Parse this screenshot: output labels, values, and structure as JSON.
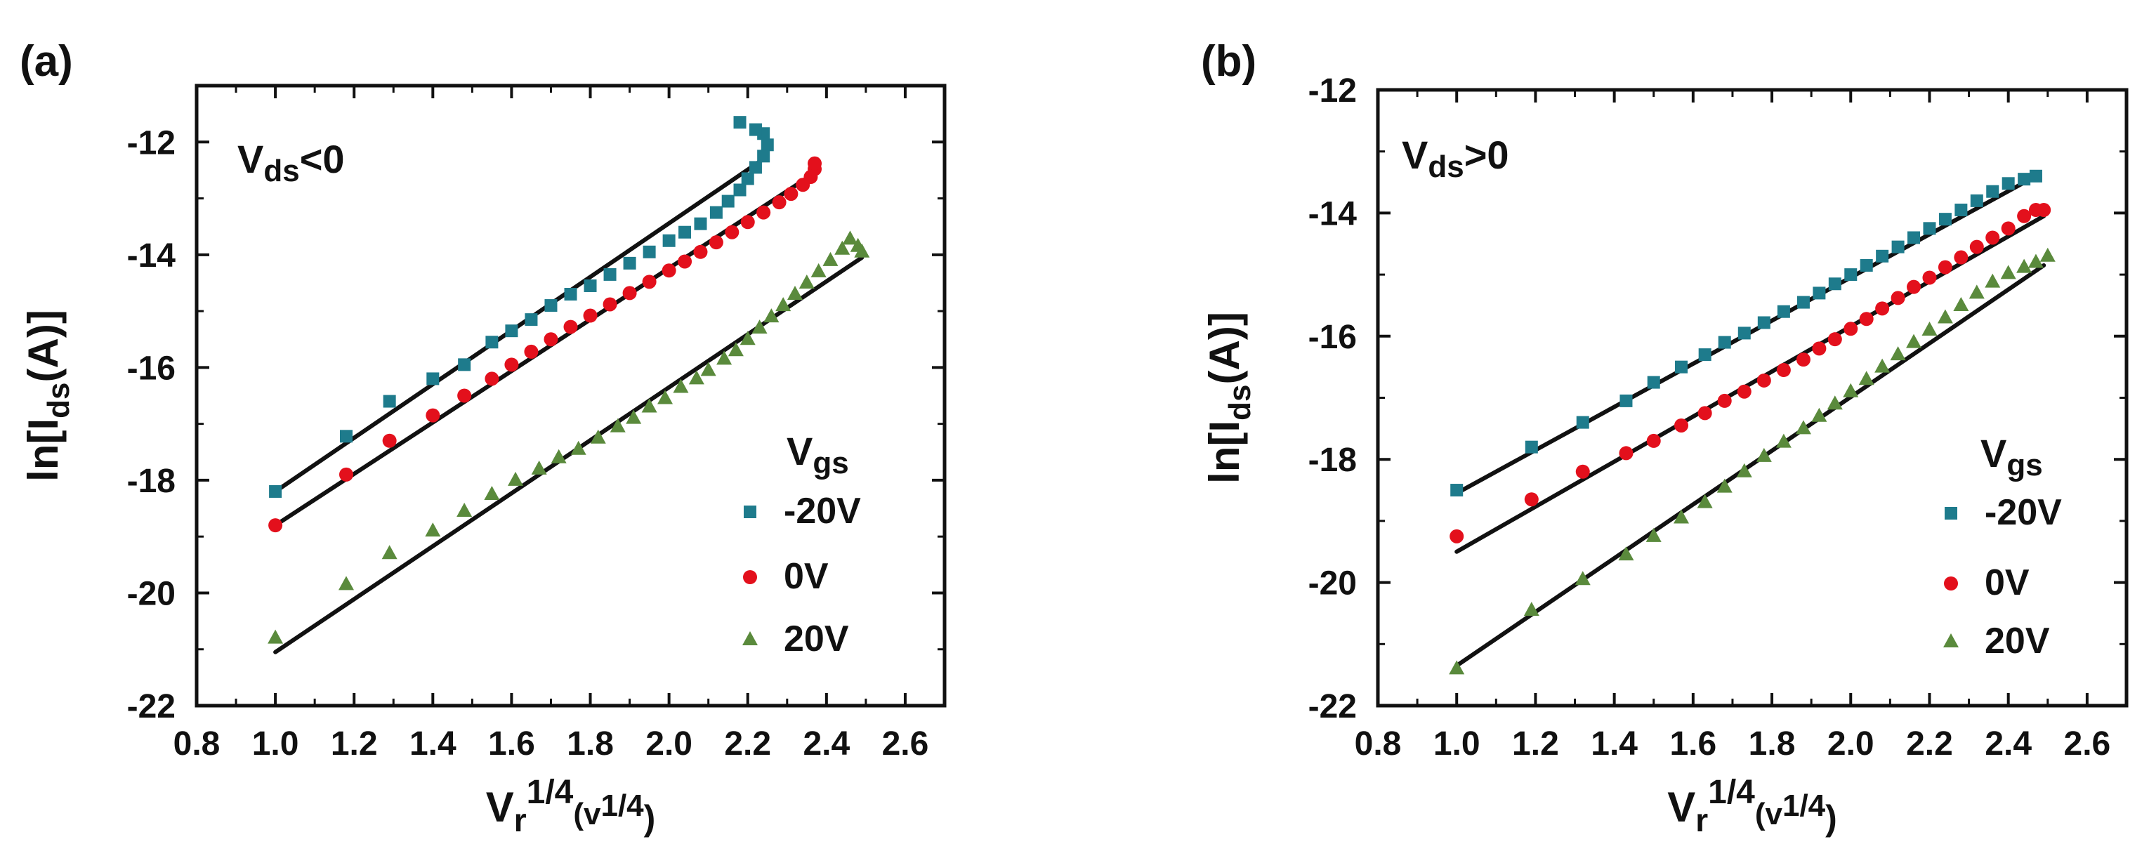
{
  "chart_data": [
    {
      "type": "scatter",
      "panel_label": "(a)",
      "annotation": {
        "main": "V",
        "sub": "ds",
        "rest": "<0"
      },
      "xlim": [
        0.8,
        2.7
      ],
      "ylim": [
        -22,
        -11
      ],
      "xticks": [
        0.8,
        1.0,
        1.2,
        1.4,
        1.6,
        1.8,
        2.0,
        2.2,
        2.4,
        2.6
      ],
      "xtick_labels": [
        "0.8",
        "1.0",
        "1.2",
        "1.4",
        "1.6",
        "1.8",
        "2.0",
        "2.2",
        "2.4",
        "2.6"
      ],
      "yticks": [
        -22,
        -20,
        -18,
        -16,
        -14,
        -12
      ],
      "ytick_labels": [
        "-22",
        "-20",
        "-18",
        "-16",
        "-14",
        "-12"
      ],
      "legend_title": {
        "main": "V",
        "sub": "gs"
      },
      "legend_position": "bottom-right",
      "series": [
        {
          "name": "-20V",
          "marker": "square",
          "color": "#1e7b8c",
          "points": [
            [
              1.0,
              -18.2
            ],
            [
              1.18,
              -17.22
            ],
            [
              1.29,
              -16.6
            ],
            [
              1.4,
              -16.2
            ],
            [
              1.48,
              -15.95
            ],
            [
              1.55,
              -15.55
            ],
            [
              1.6,
              -15.35
            ],
            [
              1.65,
              -15.15
            ],
            [
              1.7,
              -14.9
            ],
            [
              1.75,
              -14.7
            ],
            [
              1.8,
              -14.55
            ],
            [
              1.85,
              -14.35
            ],
            [
              1.9,
              -14.15
            ],
            [
              1.95,
              -13.95
            ],
            [
              2.0,
              -13.75
            ],
            [
              2.04,
              -13.6
            ],
            [
              2.08,
              -13.45
            ],
            [
              2.12,
              -13.25
            ],
            [
              2.15,
              -13.05
            ],
            [
              2.18,
              -12.85
            ],
            [
              2.2,
              -12.65
            ],
            [
              2.22,
              -12.45
            ],
            [
              2.24,
              -12.25
            ],
            [
              2.25,
              -12.05
            ],
            [
              2.24,
              -11.85
            ],
            [
              2.22,
              -11.78
            ],
            [
              2.18,
              -11.65
            ]
          ],
          "fit": [
            [
              1.0,
              -18.2
            ],
            [
              2.24,
              -12.3
            ]
          ]
        },
        {
          "name": "0V",
          "marker": "circle",
          "color": "#e3101c",
          "points": [
            [
              1.0,
              -18.8
            ],
            [
              1.18,
              -17.9
            ],
            [
              1.29,
              -17.3
            ],
            [
              1.4,
              -16.85
            ],
            [
              1.48,
              -16.5
            ],
            [
              1.55,
              -16.2
            ],
            [
              1.6,
              -15.95
            ],
            [
              1.65,
              -15.72
            ],
            [
              1.7,
              -15.5
            ],
            [
              1.75,
              -15.28
            ],
            [
              1.8,
              -15.08
            ],
            [
              1.85,
              -14.88
            ],
            [
              1.9,
              -14.68
            ],
            [
              1.95,
              -14.48
            ],
            [
              2.0,
              -14.28
            ],
            [
              2.04,
              -14.12
            ],
            [
              2.08,
              -13.95
            ],
            [
              2.12,
              -13.78
            ],
            [
              2.16,
              -13.6
            ],
            [
              2.2,
              -13.42
            ],
            [
              2.24,
              -13.25
            ],
            [
              2.28,
              -13.07
            ],
            [
              2.31,
              -12.92
            ],
            [
              2.34,
              -12.76
            ],
            [
              2.36,
              -12.62
            ],
            [
              2.37,
              -12.48
            ],
            [
              2.37,
              -12.38
            ]
          ],
          "fit": [
            [
              1.0,
              -18.8
            ],
            [
              2.37,
              -12.55
            ]
          ]
        },
        {
          "name": "20V",
          "marker": "triangle",
          "color": "#5a8a3c",
          "points": [
            [
              1.0,
              -20.8
            ],
            [
              1.18,
              -19.85
            ],
            [
              1.29,
              -19.3
            ],
            [
              1.4,
              -18.9
            ],
            [
              1.48,
              -18.55
            ],
            [
              1.55,
              -18.25
            ],
            [
              1.61,
              -18.0
            ],
            [
              1.67,
              -17.8
            ],
            [
              1.72,
              -17.6
            ],
            [
              1.77,
              -17.45
            ],
            [
              1.82,
              -17.25
            ],
            [
              1.87,
              -17.05
            ],
            [
              1.91,
              -16.9
            ],
            [
              1.95,
              -16.7
            ],
            [
              1.99,
              -16.55
            ],
            [
              2.03,
              -16.35
            ],
            [
              2.07,
              -16.2
            ],
            [
              2.1,
              -16.05
            ],
            [
              2.14,
              -15.85
            ],
            [
              2.17,
              -15.7
            ],
            [
              2.2,
              -15.5
            ],
            [
              2.23,
              -15.3
            ],
            [
              2.26,
              -15.1
            ],
            [
              2.29,
              -14.9
            ],
            [
              2.32,
              -14.7
            ],
            [
              2.35,
              -14.5
            ],
            [
              2.38,
              -14.3
            ],
            [
              2.41,
              -14.1
            ],
            [
              2.44,
              -13.9
            ],
            [
              2.46,
              -13.72
            ],
            [
              2.48,
              -13.85
            ],
            [
              2.49,
              -13.95
            ]
          ],
          "fit": [
            [
              1.0,
              -21.05
            ],
            [
              2.49,
              -14.05
            ]
          ]
        }
      ],
      "xlabel": {
        "main": "V",
        "sub": "r",
        "sup": "1/4",
        "rest": "(v",
        "rest_sup": "1/4",
        "end": ")"
      },
      "ylabel": {
        "pre": "ln[I",
        "sub": "ds",
        "post": "(A)]"
      }
    },
    {
      "type": "scatter",
      "panel_label": "(b)",
      "annotation": {
        "main": "V",
        "sub": "ds",
        "rest": ">0"
      },
      "xlim": [
        0.8,
        2.7
      ],
      "ylim": [
        -22,
        -12
      ],
      "xticks": [
        0.8,
        1.0,
        1.2,
        1.4,
        1.6,
        1.8,
        2.0,
        2.2,
        2.4,
        2.6
      ],
      "xtick_labels": [
        "0.8",
        "1.0",
        "1.2",
        "1.4",
        "1.6",
        "1.8",
        "2.0",
        "2.2",
        "2.4",
        "2.6"
      ],
      "yticks": [
        -22,
        -20,
        -18,
        -16,
        -14,
        -12
      ],
      "ytick_labels": [
        "-22",
        "-20",
        "-18",
        "-16",
        "-14",
        "-12"
      ],
      "legend_title": {
        "main": "V",
        "sub": "gs"
      },
      "legend_position": "bottom-right",
      "series": [
        {
          "name": "-20V",
          "marker": "square",
          "color": "#1e7b8c",
          "points": [
            [
              1.0,
              -18.5
            ],
            [
              1.19,
              -17.8
            ],
            [
              1.32,
              -17.4
            ],
            [
              1.43,
              -17.05
            ],
            [
              1.5,
              -16.75
            ],
            [
              1.57,
              -16.5
            ],
            [
              1.63,
              -16.3
            ],
            [
              1.68,
              -16.1
            ],
            [
              1.73,
              -15.95
            ],
            [
              1.78,
              -15.78
            ],
            [
              1.83,
              -15.6
            ],
            [
              1.88,
              -15.45
            ],
            [
              1.92,
              -15.3
            ],
            [
              1.96,
              -15.15
            ],
            [
              2.0,
              -15.0
            ],
            [
              2.04,
              -14.85
            ],
            [
              2.08,
              -14.7
            ],
            [
              2.12,
              -14.55
            ],
            [
              2.16,
              -14.4
            ],
            [
              2.2,
              -14.25
            ],
            [
              2.24,
              -14.1
            ],
            [
              2.28,
              -13.95
            ],
            [
              2.32,
              -13.8
            ],
            [
              2.36,
              -13.65
            ],
            [
              2.4,
              -13.52
            ],
            [
              2.44,
              -13.45
            ],
            [
              2.47,
              -13.4
            ]
          ],
          "fit": [
            [
              1.0,
              -18.55
            ],
            [
              2.47,
              -13.4
            ]
          ]
        },
        {
          "name": "0V",
          "marker": "circle",
          "color": "#e3101c",
          "points": [
            [
              1.0,
              -19.25
            ],
            [
              1.19,
              -18.65
            ],
            [
              1.32,
              -18.2
            ],
            [
              1.43,
              -17.9
            ],
            [
              1.5,
              -17.7
            ],
            [
              1.57,
              -17.45
            ],
            [
              1.63,
              -17.25
            ],
            [
              1.68,
              -17.05
            ],
            [
              1.73,
              -16.9
            ],
            [
              1.78,
              -16.72
            ],
            [
              1.83,
              -16.55
            ],
            [
              1.88,
              -16.38
            ],
            [
              1.92,
              -16.2
            ],
            [
              1.96,
              -16.05
            ],
            [
              2.0,
              -15.88
            ],
            [
              2.04,
              -15.72
            ],
            [
              2.08,
              -15.55
            ],
            [
              2.12,
              -15.38
            ],
            [
              2.16,
              -15.2
            ],
            [
              2.2,
              -15.05
            ],
            [
              2.24,
              -14.88
            ],
            [
              2.28,
              -14.72
            ],
            [
              2.32,
              -14.55
            ],
            [
              2.36,
              -14.4
            ],
            [
              2.4,
              -14.25
            ],
            [
              2.44,
              -14.05
            ],
            [
              2.47,
              -13.95
            ],
            [
              2.49,
              -13.95
            ]
          ],
          "fit": [
            [
              1.0,
              -19.5
            ],
            [
              2.49,
              -14.05
            ]
          ]
        },
        {
          "name": "20V",
          "marker": "triangle",
          "color": "#5a8a3c",
          "points": [
            [
              1.0,
              -21.4
            ],
            [
              1.19,
              -20.45
            ],
            [
              1.32,
              -19.95
            ],
            [
              1.43,
              -19.55
            ],
            [
              1.5,
              -19.25
            ],
            [
              1.57,
              -18.95
            ],
            [
              1.63,
              -18.7
            ],
            [
              1.68,
              -18.45
            ],
            [
              1.73,
              -18.2
            ],
            [
              1.78,
              -17.95
            ],
            [
              1.83,
              -17.72
            ],
            [
              1.88,
              -17.5
            ],
            [
              1.92,
              -17.3
            ],
            [
              1.96,
              -17.1
            ],
            [
              2.0,
              -16.9
            ],
            [
              2.04,
              -16.7
            ],
            [
              2.08,
              -16.5
            ],
            [
              2.12,
              -16.3
            ],
            [
              2.16,
              -16.1
            ],
            [
              2.2,
              -15.9
            ],
            [
              2.24,
              -15.7
            ],
            [
              2.28,
              -15.5
            ],
            [
              2.32,
              -15.3
            ],
            [
              2.36,
              -15.12
            ],
            [
              2.4,
              -14.98
            ],
            [
              2.44,
              -14.88
            ],
            [
              2.47,
              -14.8
            ],
            [
              2.5,
              -14.7
            ]
          ],
          "fit": [
            [
              1.0,
              -21.35
            ],
            [
              2.49,
              -14.85
            ]
          ]
        }
      ],
      "xlabel": {
        "main": "V",
        "sub": "r",
        "sup": "1/4",
        "rest": "(v",
        "rest_sup": "1/4",
        "end": ")"
      },
      "ylabel": {
        "pre": "ln[I",
        "sub": "ds",
        "post": "(A)]"
      }
    }
  ]
}
